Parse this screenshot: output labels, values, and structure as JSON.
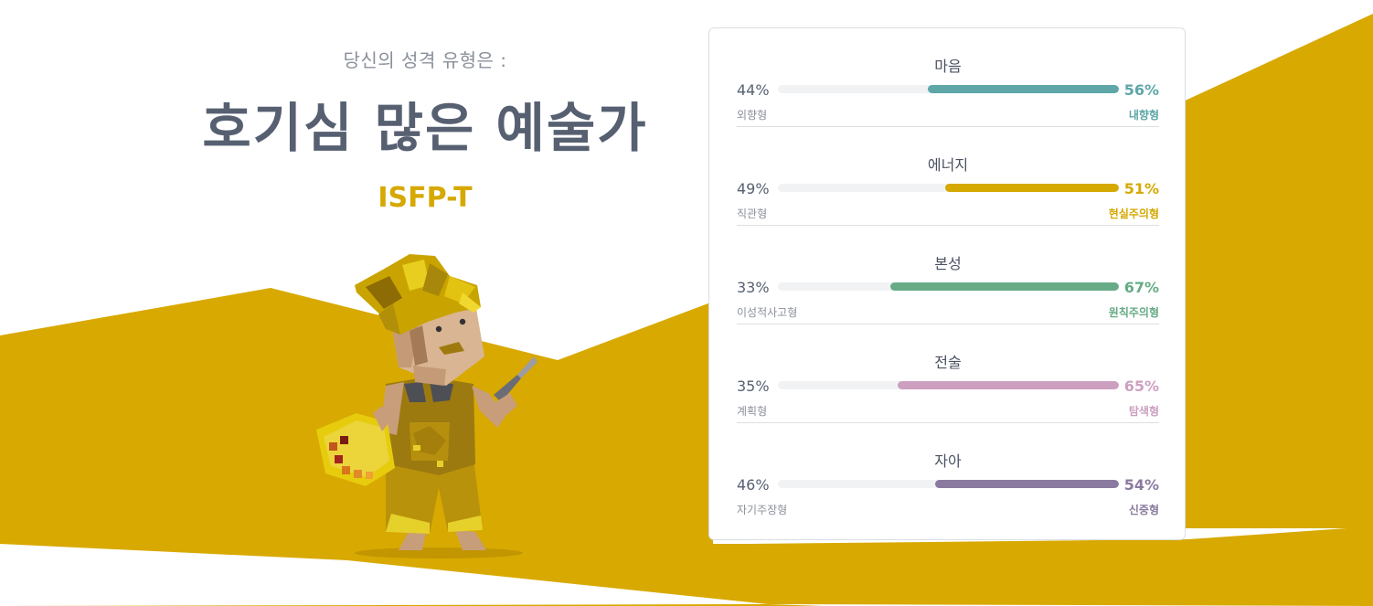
{
  "header": {
    "subtitle": "당신의 성격 유형은 :",
    "type_name": "호기심 많은 예술가",
    "type_code": "ISFP-T"
  },
  "colors": {
    "brand_yellow": "#d8a900",
    "card_border": "#dadde2"
  },
  "figure": {
    "icon": "artist-character-illustration"
  },
  "scales": [
    {
      "title": "마음",
      "left_pct": "44%",
      "right_pct": "56%",
      "left_label": "외향형",
      "right_label": "내향형",
      "fill_fraction": 0.56,
      "color": "#5ea6a8"
    },
    {
      "title": "에너지",
      "left_pct": "49%",
      "right_pct": "51%",
      "left_label": "직관형",
      "right_label": "현실주의형",
      "fill_fraction": 0.51,
      "color": "#d5a900"
    },
    {
      "title": "본성",
      "left_pct": "33%",
      "right_pct": "67%",
      "left_label": "이성적사고형",
      "right_label": "원칙주의형",
      "fill_fraction": 0.67,
      "color": "#66ab85"
    },
    {
      "title": "전술",
      "left_pct": "35%",
      "right_pct": "65%",
      "left_label": "계획형",
      "right_label": "탐색형",
      "fill_fraction": 0.65,
      "color": "#cc9fc0"
    },
    {
      "title": "자아",
      "left_pct": "46%",
      "right_pct": "54%",
      "left_label": "자기주장형",
      "right_label": "신중형",
      "fill_fraction": 0.54,
      "color": "#8a7aa0"
    }
  ]
}
